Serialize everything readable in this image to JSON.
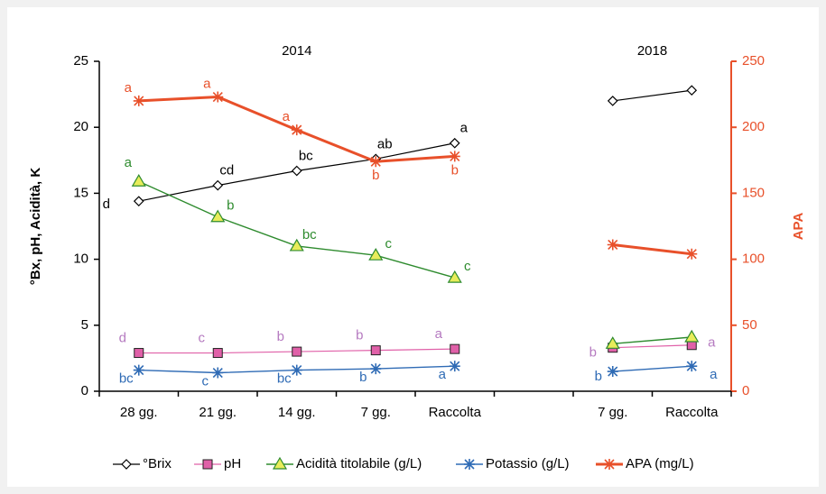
{
  "chart_data": {
    "type": "line",
    "group_labels": [
      "2014",
      "2018"
    ],
    "categories": [
      "28 gg.",
      "21 gg.",
      "14 gg.",
      "7 gg.",
      "Raccolta",
      null,
      "7 gg.",
      "Raccolta"
    ],
    "ylabel": "°Bx, pH, Acidità, K",
    "y2label": "APA",
    "ylim": [
      0,
      25
    ],
    "yticks": [
      0,
      5,
      10,
      15,
      20,
      25
    ],
    "y2lim": [
      0,
      250
    ],
    "y2ticks": [
      0,
      50,
      100,
      150,
      200,
      250
    ],
    "series": [
      {
        "name": "°Brix",
        "color": "#000000",
        "marker": "diamond",
        "values": [
          14.4,
          15.6,
          16.7,
          17.6,
          18.8,
          null,
          22.0,
          22.8
        ],
        "labels": [
          "d",
          "cd",
          "bc",
          "ab",
          "a",
          null,
          null,
          null
        ]
      },
      {
        "name": "pH",
        "color": "#e060a8",
        "marker": "square",
        "values": [
          2.9,
          2.9,
          3.0,
          3.1,
          3.2,
          null,
          3.3,
          3.5
        ],
        "labels": [
          "d",
          "c",
          "b",
          "b",
          "a",
          null,
          "b",
          "a"
        ]
      },
      {
        "name": "Acidità titolabile (g/L)",
        "color": "#2e8b2e",
        "marker": "triangle",
        "values": [
          15.9,
          13.2,
          11.0,
          10.3,
          8.6,
          null,
          3.6,
          4.1
        ],
        "labels": [
          "a",
          "b",
          "bc",
          "c",
          "c",
          null,
          null,
          null
        ]
      },
      {
        "name": "Potassio (g/L)",
        "color": "#2f6bb5",
        "marker": "star",
        "values": [
          1.6,
          1.4,
          1.6,
          1.7,
          1.9,
          null,
          1.5,
          1.9
        ],
        "labels": [
          "bc",
          "c",
          "bc",
          "b",
          "a",
          null,
          "b",
          "a"
        ]
      },
      {
        "name": "APA (mg/L)",
        "color": "#e8502a",
        "marker": "star",
        "axis": "y2",
        "values": [
          220,
          223,
          198,
          174,
          178,
          null,
          111,
          104
        ],
        "labels": [
          "a",
          "a",
          "a",
          "b",
          "b",
          null,
          null,
          null
        ]
      }
    ]
  }
}
